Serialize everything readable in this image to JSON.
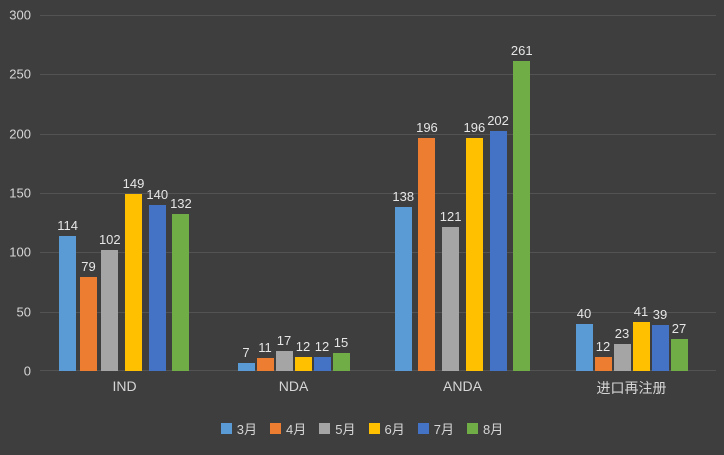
{
  "chart_data": {
    "type": "bar",
    "categories": [
      "IND",
      "NDA",
      "ANDA",
      "进口再注册"
    ],
    "series": [
      {
        "name": "3月",
        "color": "#5B9BD5",
        "values": [
          114,
          7,
          138,
          40
        ]
      },
      {
        "name": "4月",
        "color": "#ED7D31",
        "values": [
          79,
          11,
          196,
          12
        ]
      },
      {
        "name": "5月",
        "color": "#A5A5A5",
        "values": [
          102,
          17,
          121,
          23
        ]
      },
      {
        "name": "6月",
        "color": "#FFC000",
        "values": [
          149,
          12,
          196,
          41
        ]
      },
      {
        "name": "7月",
        "color": "#4472C4",
        "values": [
          140,
          12,
          202,
          39
        ]
      },
      {
        "name": "8月",
        "color": "#70AD47",
        "values": [
          132,
          15,
          261,
          27
        ]
      }
    ],
    "ylim": [
      0,
      300
    ],
    "ytick_step": 50,
    "grid": true,
    "legend_position": "bottom",
    "background_color": "#3E3E3E",
    "gridline_color": "#535353",
    "text_color": "#D6D6D6"
  }
}
